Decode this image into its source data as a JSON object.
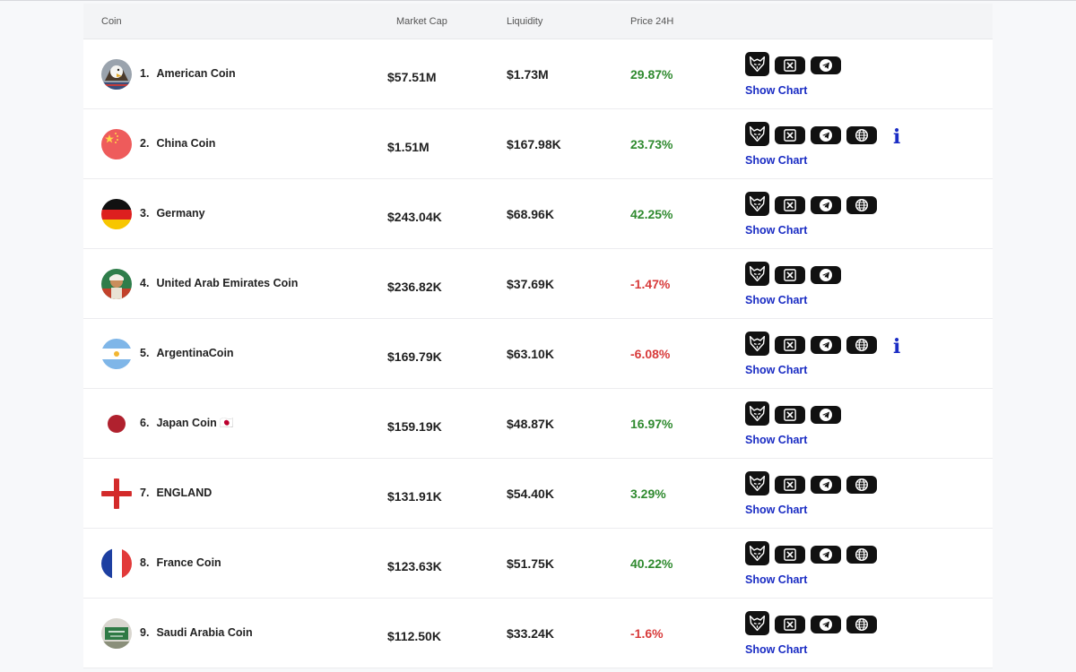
{
  "columns": {
    "coin": "Coin",
    "market_cap": "Market Cap",
    "liquidity": "Liquidity",
    "price_24h": "Price 24H"
  },
  "show_chart_label": "Show Chart",
  "info_glyph": "i",
  "colors": {
    "positive": "#2f8a2f",
    "negative": "#d83a3a",
    "link": "#1a2cc4",
    "icon_bg": "#111111"
  },
  "rows": [
    {
      "rank": "1.",
      "name": "American Coin",
      "market_cap": "$57.51M",
      "liquidity": "$1.73M",
      "price_change": "29.87%",
      "trend": "up",
      "avatar_icon": "eagle-avatar",
      "links": [
        "fox-icon",
        "x-icon",
        "telegram-icon"
      ],
      "info": false
    },
    {
      "rank": "2.",
      "name": "China Coin",
      "market_cap": "$1.51M",
      "liquidity": "$167.98K",
      "price_change": "23.73%",
      "trend": "up",
      "avatar_icon": "china-flag-avatar",
      "links": [
        "fox-icon",
        "x-icon",
        "telegram-icon",
        "globe-icon"
      ],
      "info": true
    },
    {
      "rank": "3.",
      "name": "Germany",
      "market_cap": "$243.04K",
      "liquidity": "$68.96K",
      "price_change": "42.25%",
      "trend": "up",
      "avatar_icon": "germany-flag-avatar",
      "links": [
        "fox-icon",
        "x-icon",
        "telegram-icon",
        "globe-icon"
      ],
      "info": false
    },
    {
      "rank": "4.",
      "name": "United Arab Emirates Coin",
      "market_cap": "$236.82K",
      "liquidity": "$37.69K",
      "price_change": "-1.47%",
      "trend": "down",
      "avatar_icon": "uae-avatar",
      "links": [
        "fox-icon",
        "x-icon",
        "telegram-icon"
      ],
      "info": false
    },
    {
      "rank": "5.",
      "name": "ArgentinaCoin",
      "market_cap": "$169.79K",
      "liquidity": "$63.10K",
      "price_change": "-6.08%",
      "trend": "down",
      "avatar_icon": "argentina-flag-avatar",
      "links": [
        "fox-icon",
        "x-icon",
        "telegram-icon",
        "globe-icon"
      ],
      "info": true
    },
    {
      "rank": "6.",
      "name": "Japan Coin 🇯🇵",
      "market_cap": "$159.19K",
      "liquidity": "$48.87K",
      "price_change": "16.97%",
      "trend": "up",
      "avatar_icon": "japan-flag-avatar",
      "links": [
        "fox-icon",
        "x-icon",
        "telegram-icon"
      ],
      "info": false
    },
    {
      "rank": "7.",
      "name": "ENGLAND",
      "market_cap": "$131.91K",
      "liquidity": "$54.40K",
      "price_change": "3.29%",
      "trend": "up",
      "avatar_icon": "england-flag-avatar",
      "links": [
        "fox-icon",
        "x-icon",
        "telegram-icon",
        "globe-icon"
      ],
      "info": false
    },
    {
      "rank": "8.",
      "name": "France Coin",
      "market_cap": "$123.63K",
      "liquidity": "$51.75K",
      "price_change": "40.22%",
      "trend": "up",
      "avatar_icon": "france-flag-avatar",
      "links": [
        "fox-icon",
        "x-icon",
        "telegram-icon",
        "globe-icon"
      ],
      "info": false
    },
    {
      "rank": "9.",
      "name": "Saudi Arabia Coin",
      "market_cap": "$112.50K",
      "liquidity": "$33.24K",
      "price_change": "-1.6%",
      "trend": "down",
      "avatar_icon": "saudi-avatar",
      "links": [
        "fox-icon",
        "x-icon",
        "telegram-icon",
        "globe-icon"
      ],
      "info": false
    }
  ]
}
